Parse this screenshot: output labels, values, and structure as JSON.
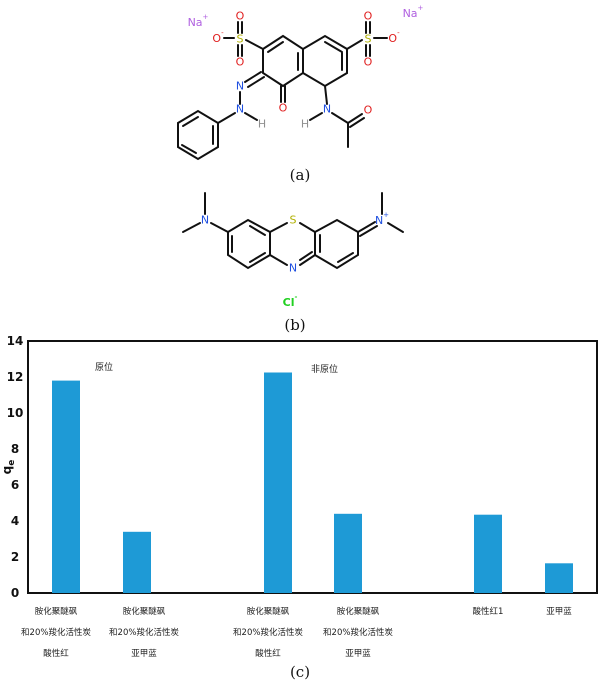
{
  "figure_a": {
    "caption": "(a)",
    "atoms": {
      "na1": "Na",
      "na2": "Na",
      "o": "O",
      "s": "S",
      "n": "N",
      "h": "H"
    }
  },
  "figure_b": {
    "caption": "(b)",
    "counter_ion": "Cl",
    "atoms": {
      "s": "S",
      "n": "N"
    }
  },
  "figure_c": {
    "caption": "(c)"
  },
  "colors": {
    "bar": "#1e9ad6",
    "n": "#2050e0",
    "o": "#e02020",
    "s": "#b0b000",
    "na": "#b060e0",
    "h": "#909090",
    "cl": "#20d020"
  },
  "chart_data": {
    "type": "bar",
    "ylabel": "qe",
    "ylim": [
      0,
      14
    ],
    "yticks": [
      "0",
      "2",
      "4",
      "6",
      "8",
      "10",
      "12",
      "14"
    ],
    "grid": false,
    "categories": [
      [
        "胺化聚醚砜",
        "和20%羧化活性炭",
        "酸性红"
      ],
      [
        "胺化聚醚砜",
        "和20%羧化活性炭",
        "亚甲蓝"
      ],
      [
        "胺化聚醚砜",
        "和20%羧化活性炭",
        "酸性红"
      ],
      [
        "胺化聚醚砜",
        "和20%羧化活性炭",
        "亚甲蓝"
      ],
      [
        "酸性红1"
      ],
      [
        "亚甲蓝"
      ]
    ],
    "values": [
      11.8,
      3.4,
      12.25,
      4.4,
      4.35,
      1.65
    ],
    "annotations": [
      "原位",
      "非原位"
    ]
  }
}
